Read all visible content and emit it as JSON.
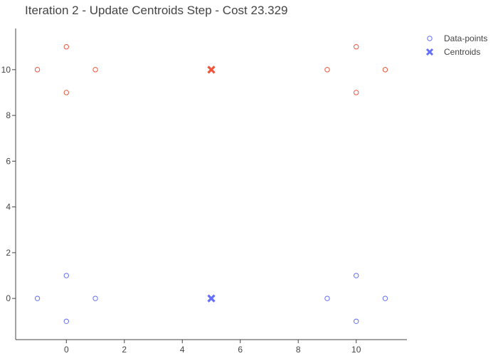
{
  "chart_data": {
    "type": "scatter",
    "title": "Iteration 2 - Update Centroids Step - Cost 23.329",
    "xlabel": "",
    "ylabel": "",
    "xlim": [
      -1.75,
      11.75
    ],
    "ylim": [
      -1.8,
      11.8
    ],
    "xticks": [
      0,
      2,
      4,
      6,
      8,
      10
    ],
    "yticks": [
      0,
      2,
      4,
      6,
      8,
      10
    ],
    "grid": false,
    "legend_position": "top-right",
    "cluster_colors": [
      "#EF553B",
      "#636EFA"
    ],
    "series": [
      {
        "name": "Data-points",
        "marker": "circle-open",
        "legend_color": "#636EFA",
        "points": [
          {
            "x": -1,
            "y": 10,
            "cluster": 0
          },
          {
            "x": 0,
            "y": 11,
            "cluster": 0
          },
          {
            "x": 0,
            "y": 9,
            "cluster": 0
          },
          {
            "x": 1,
            "y": 10,
            "cluster": 0
          },
          {
            "x": 9,
            "y": 10,
            "cluster": 0
          },
          {
            "x": 10,
            "y": 11,
            "cluster": 0
          },
          {
            "x": 10,
            "y": 9,
            "cluster": 0
          },
          {
            "x": 11,
            "y": 10,
            "cluster": 0
          },
          {
            "x": -1,
            "y": 0,
            "cluster": 1
          },
          {
            "x": 0,
            "y": 1,
            "cluster": 1
          },
          {
            "x": 0,
            "y": -1,
            "cluster": 1
          },
          {
            "x": 1,
            "y": 0,
            "cluster": 1
          },
          {
            "x": 9,
            "y": 0,
            "cluster": 1
          },
          {
            "x": 10,
            "y": 1,
            "cluster": 1
          },
          {
            "x": 10,
            "y": -1,
            "cluster": 1
          },
          {
            "x": 11,
            "y": 0,
            "cluster": 1
          }
        ]
      },
      {
        "name": "Centroids",
        "marker": "x",
        "legend_color": "#636EFA",
        "points": [
          {
            "x": 5,
            "y": 10,
            "cluster": 0
          },
          {
            "x": 5,
            "y": 0,
            "cluster": 1
          }
        ]
      }
    ]
  }
}
